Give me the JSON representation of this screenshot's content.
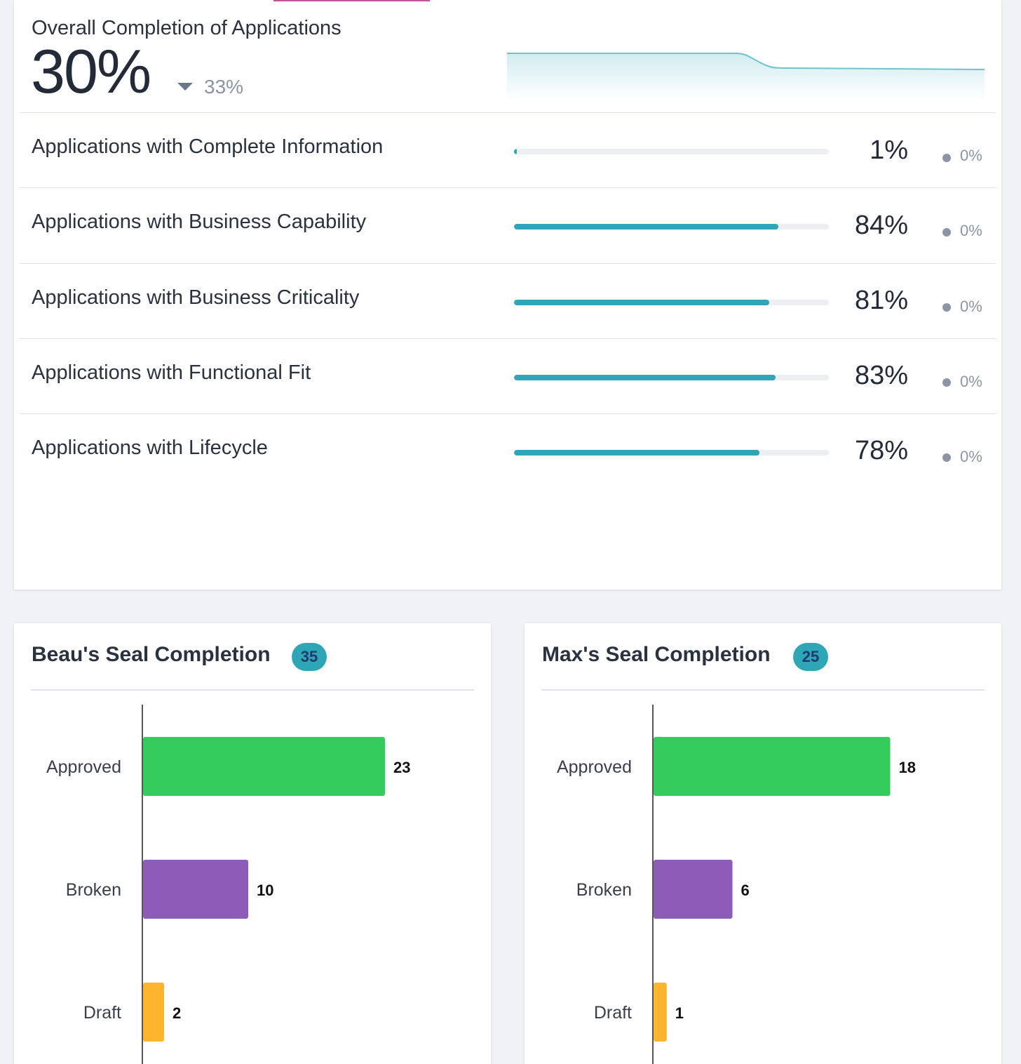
{
  "overall": {
    "title": "Overall Completion of Applications",
    "value": "30%",
    "trend_direction": "down",
    "trend_value": "33%",
    "sparkline_color": "#2ea6b6"
  },
  "metrics": [
    {
      "label": "Applications with Complete Information",
      "value": "1%",
      "progress": 0.01,
      "delta": "0%"
    },
    {
      "label": "Applications with Business Capability",
      "value": "84%",
      "progress": 0.84,
      "delta": "0%"
    },
    {
      "label": "Applications with Business Criticality",
      "value": "81%",
      "progress": 0.81,
      "delta": "0%"
    },
    {
      "label": "Applications with Functional Fit",
      "value": "83%",
      "progress": 0.83,
      "delta": "0%"
    },
    {
      "label": "Applications with Lifecycle",
      "value": "78%",
      "progress": 0.78,
      "delta": "0%"
    }
  ],
  "panels": {
    "beau": {
      "title": "Beau's Seal Completion",
      "count": "35"
    },
    "max": {
      "title": "Max's Seal Completion",
      "count": "25"
    }
  },
  "colors": {
    "accent": "#2ea6b6",
    "approved": "#34cc5c",
    "broken": "#8c5cb6",
    "draft": "#fdb52d"
  },
  "chart_data": [
    {
      "type": "bar",
      "orientation": "horizontal",
      "title": "Beau's Seal Completion",
      "categories": [
        "Approved",
        "Broken",
        "Draft"
      ],
      "values": [
        23,
        10,
        2
      ],
      "colors": [
        "#34cc5c",
        "#8c5cb6",
        "#fdb52d"
      ],
      "xlim": [
        0,
        30
      ]
    },
    {
      "type": "bar",
      "orientation": "horizontal",
      "title": "Max's Seal Completion",
      "categories": [
        "Approved",
        "Broken",
        "Draft"
      ],
      "values": [
        18,
        6,
        1
      ],
      "colors": [
        "#34cc5c",
        "#8c5cb6",
        "#fdb52d"
      ],
      "xlim": [
        0,
        24
      ]
    }
  ]
}
